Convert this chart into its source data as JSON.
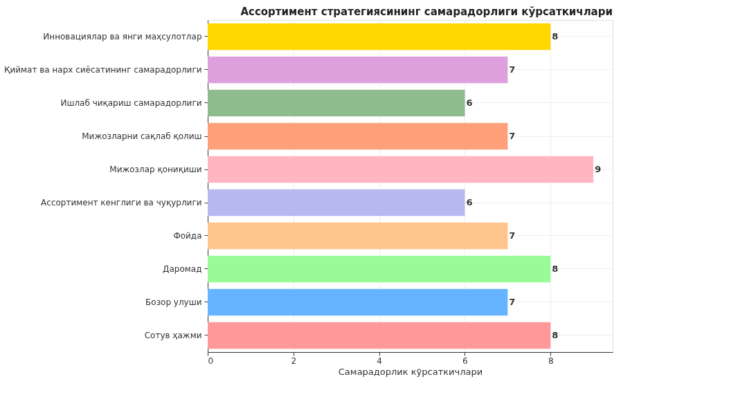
{
  "chart_data": {
    "type": "bar",
    "orientation": "horizontal",
    "title": "Ассортимент стратегиясининг самарадорлиги кўрсаткичлари",
    "xlabel": "Самарадорлик кўрсаткичлари",
    "categories": [
      "Инновациялар ва янги маҳсулотлар",
      "Қиймат ва нарх сиёсатининг самарадорлиги",
      "Ишлаб чиқариш самарадорлиги",
      "Мижозларни сақлаб қолиш",
      "Мижозлар қониқиши",
      "Ассортимент кенглиги ва чуқурлиги",
      "Фойда",
      "Даромад",
      "Бозор улуши",
      "Сотув ҳажми"
    ],
    "values": [
      8,
      7,
      6,
      7,
      9,
      6,
      7,
      8,
      7,
      8
    ],
    "colors": [
      "#ffd700",
      "#dda0dd",
      "#8fbc8f",
      "#ffa07a",
      "#ffb6c1",
      "#b8b8f0",
      "#ffc48c",
      "#98fb98",
      "#66b3ff",
      "#ff9999"
    ],
    "xlim": [
      0,
      9.45
    ],
    "xticks": [
      0,
      2,
      4,
      6,
      8
    ],
    "grid": true,
    "data_labels": true
  }
}
